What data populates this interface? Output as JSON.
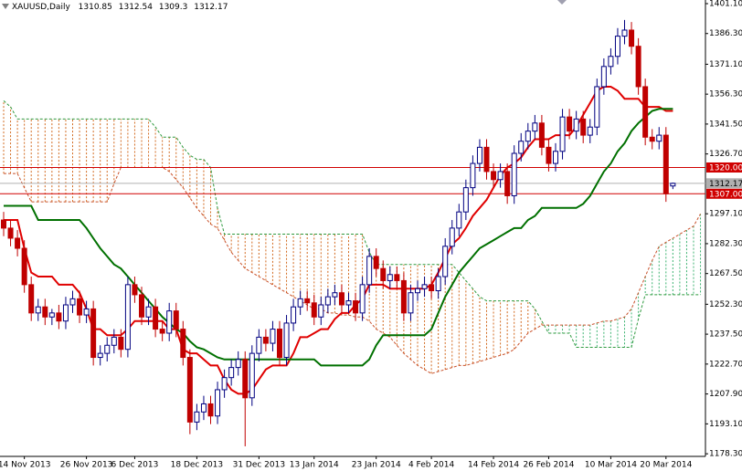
{
  "chart_data": {
    "type": "candlestick",
    "symbol": "XAUUSD,Daily",
    "categories": [
      null,
      null,
      null,
      "14 Nov 2013",
      null,
      null,
      null,
      null,
      null,
      null,
      null,
      null,
      "26 Nov 2013",
      null,
      null,
      null,
      null,
      null,
      null,
      "6 Dec 2013",
      null,
      null,
      null,
      null,
      null,
      null,
      null,
      null,
      "18 Dec 2013",
      null,
      null,
      null,
      null,
      null,
      null,
      null,
      null,
      "31 Dec 2013",
      null,
      null,
      null,
      null,
      null,
      null,
      null,
      "13 Jan 2014",
      null,
      null,
      null,
      null,
      null,
      null,
      null,
      null,
      "23 Jan 2014",
      null,
      null,
      null,
      null,
      null,
      null,
      null,
      "4 Feb 2014",
      null,
      null,
      null,
      null,
      null,
      null,
      null,
      null,
      "14 Feb 2014",
      null,
      null,
      null,
      null,
      null,
      null,
      null,
      "26 Feb 2014",
      null,
      null,
      null,
      null,
      null,
      null,
      null,
      null,
      "10 Mar 2014",
      null,
      null,
      null,
      null,
      null,
      null,
      null,
      "20 Mar 2014",
      null,
      null,
      null,
      null,
      null
    ],
    "open": [
      1294,
      1290,
      1285,
      1280,
      1262,
      1248,
      1251,
      1246,
      1248,
      1244,
      1252,
      1255,
      1247,
      1250,
      1226,
      1228,
      1232,
      1236,
      1230,
      1262,
      1257,
      1246,
      1251,
      1240,
      1238,
      1249,
      1240,
      1226,
      1194,
      1199,
      1203,
      1197,
      1210,
      1216,
      1221,
      1225,
      1206,
      1228,
      1236,
      1233,
      1240,
      1226,
      1243,
      1251,
      1255,
      1253,
      1246,
      1252,
      1256,
      1258,
      1252,
      1254,
      1248,
      1262,
      1276,
      1270,
      1264,
      1267,
      1264,
      1248,
      1258,
      1260,
      1262,
      1259,
      1266,
      1281,
      1290,
      1298,
      1310,
      1322,
      1330,
      1318,
      1314,
      1318,
      1306,
      1327,
      1333,
      1338,
      1342,
      1330,
      1322,
      1328,
      1345,
      1338,
      1344,
      1336,
      1340,
      1360,
      1370,
      1375,
      1385,
      1388,
      1380,
      1360,
      1335,
      1333,
      1336,
      1310.85,
      null,
      null,
      null,
      null
    ],
    "high": [
      1298,
      1294,
      1289,
      1284,
      1266,
      1255,
      1255,
      1250,
      1252,
      1256,
      1259,
      1259,
      1254,
      1254,
      1232,
      1236,
      1240,
      1240,
      1266,
      1266,
      1261,
      1255,
      1255,
      1244,
      1253,
      1253,
      1244,
      1230,
      1203,
      1207,
      1207,
      1214,
      1220,
      1225,
      1229,
      1229,
      1232,
      1240,
      1240,
      1244,
      1244,
      1247,
      1255,
      1259,
      1259,
      1257,
      1256,
      1260,
      1262,
      1262,
      1258,
      1258,
      1266,
      1280,
      1280,
      1274,
      1271,
      1271,
      1268,
      1262,
      1264,
      1266,
      1266,
      1270,
      1285,
      1294,
      1302,
      1314,
      1326,
      1334,
      1334,
      1322,
      1322,
      1322,
      1331,
      1337,
      1342,
      1346,
      1346,
      1334,
      1332,
      1349,
      1349,
      1348,
      1348,
      1344,
      1364,
      1374,
      1379,
      1389,
      1393,
      1392,
      1384,
      1364,
      1339,
      1340,
      1340,
      1312.54,
      null,
      null,
      null,
      null
    ],
    "low": [
      1286,
      1281,
      1276,
      1258,
      1244,
      1244,
      1242,
      1242,
      1240,
      1240,
      1248,
      1243,
      1243,
      1222,
      1222,
      1224,
      1228,
      1226,
      1226,
      1253,
      1242,
      1242,
      1236,
      1234,
      1234,
      1236,
      1222,
      1188,
      1190,
      1195,
      1193,
      1193,
      1206,
      1212,
      1217,
      1182,
      1202,
      1224,
      1229,
      1229,
      1222,
      1222,
      1239,
      1247,
      1249,
      1242,
      1242,
      1248,
      1252,
      1248,
      1248,
      1244,
      1244,
      1258,
      1266,
      1260,
      1260,
      1260,
      1244,
      1244,
      1254,
      1256,
      1255,
      1255,
      1262,
      1277,
      1286,
      1294,
      1306,
      1318,
      1314,
      1310,
      1310,
      1302,
      1302,
      1323,
      1329,
      1334,
      1326,
      1318,
      1318,
      1324,
      1334,
      1334,
      1332,
      1332,
      1336,
      1356,
      1366,
      1371,
      1381,
      1376,
      1356,
      1331,
      1329,
      1329,
      1303,
      1309.3,
      null,
      null,
      null,
      null
    ],
    "close": [
      1290,
      1285,
      1280,
      1262,
      1248,
      1251,
      1246,
      1248,
      1244,
      1252,
      1255,
      1247,
      1250,
      1226,
      1228,
      1232,
      1236,
      1230,
      1262,
      1257,
      1246,
      1251,
      1240,
      1238,
      1249,
      1240,
      1226,
      1194,
      1199,
      1203,
      1197,
      1210,
      1216,
      1221,
      1225,
      1206,
      1228,
      1236,
      1233,
      1240,
      1226,
      1243,
      1251,
      1255,
      1253,
      1246,
      1252,
      1256,
      1258,
      1252,
      1254,
      1248,
      1262,
      1276,
      1270,
      1264,
      1267,
      1264,
      1248,
      1258,
      1260,
      1262,
      1259,
      1266,
      1281,
      1290,
      1298,
      1310,
      1322,
      1330,
      1318,
      1314,
      1318,
      1306,
      1327,
      1333,
      1338,
      1342,
      1330,
      1322,
      1328,
      1345,
      1338,
      1344,
      1336,
      1340,
      1360,
      1370,
      1375,
      1385,
      1388,
      1380,
      1360,
      1335,
      1333,
      1336,
      1307,
      1312.17,
      null,
      null,
      null,
      null
    ],
    "bull_color": "#000080",
    "bear_color": "#c00000",
    "lines": [
      {
        "color": "#e00000",
        "values": [
          1294,
          1294,
          1294,
          1280,
          1268,
          1266,
          1266,
          1266,
          1262,
          1262,
          1262,
          1258,
          1250,
          1240,
          1240,
          1237,
          1237,
          1237,
          1240,
          1244,
          1244,
          1244,
          1244,
          1244,
          1240,
          1240,
          1230,
          1228,
          1228,
          1225,
          1222,
          1222,
          1215,
          1210,
          1208,
          1208,
          1210,
          1215,
          1220,
          1222,
          1222,
          1222,
          1228,
          1236,
          1236,
          1238,
          1240,
          1240,
          1245,
          1248,
          1248,
          1252,
          1255,
          1262,
          1262,
          1262,
          1260,
          1260,
          1260,
          1260,
          1260,
          1260,
          1262,
          1268,
          1275,
          1282,
          1285,
          1290,
          1296,
          1300,
          1304,
          1310,
          1316,
          1320,
          1322,
          1325,
          1330,
          1334,
          1334,
          1334,
          1336,
          1336,
          1336,
          1340,
          1346,
          1352,
          1358,
          1360,
          1360,
          1358,
          1354,
          1354,
          1354,
          1350,
          1350,
          1350,
          1348,
          1348,
          null,
          null,
          null,
          null
        ]
      },
      {
        "color": "#007000",
        "values": [
          1301,
          1301,
          1301,
          1301,
          1301,
          1294,
          1294,
          1294,
          1294,
          1294,
          1294,
          1294,
          1290,
          1285,
          1280,
          1276,
          1272,
          1270,
          1266,
          1262,
          1258,
          1254,
          1250,
          1246,
          1243,
          1240,
          1238,
          1234,
          1231,
          1230,
          1228,
          1226,
          1225,
          1225,
          1225,
          1225,
          1225,
          1225,
          1225,
          1225,
          1225,
          1225,
          1225,
          1225,
          1225,
          1225,
          1222,
          1222,
          1222,
          1222,
          1222,
          1222,
          1222,
          1225,
          1232,
          1237,
          1237,
          1237,
          1237,
          1237,
          1237,
          1237,
          1240,
          1248,
          1256,
          1262,
          1268,
          1272,
          1276,
          1280,
          1282,
          1284,
          1286,
          1288,
          1290,
          1290,
          1294,
          1296,
          1300,
          1300,
          1300,
          1300,
          1300,
          1300,
          1302,
          1306,
          1312,
          1318,
          1322,
          1328,
          1332,
          1338,
          1342,
          1345,
          1348,
          1349,
          1349,
          1349,
          null,
          null,
          null,
          null
        ]
      }
    ],
    "cloud": {
      "span_a_color": "#c8502a",
      "span_b_color": "#2e9a3e",
      "bear_color": "#d2691e",
      "bull_color": "#3cb371",
      "span_a": [
        1317,
        1317,
        1317,
        1310,
        1303,
        1303,
        1303,
        1303,
        1303,
        1303,
        1303,
        1303,
        1303,
        1303,
        1303,
        1303,
        1312,
        1320,
        1320,
        1320,
        1320,
        1320,
        1320,
        1320,
        1318,
        1314,
        1310,
        1305,
        1300,
        1296,
        1292,
        1290,
        1284,
        1278,
        1274,
        1270,
        1268,
        1266,
        1264,
        1262,
        1260,
        1258,
        1256,
        1254,
        1252,
        1250,
        1250,
        1248,
        1248,
        1247,
        1247,
        1246,
        1246,
        1244,
        1240,
        1238,
        1236,
        1232,
        1228,
        1225,
        1222,
        1220,
        1218,
        1219,
        1220,
        1221,
        1222,
        1222,
        1223,
        1224,
        1225,
        1226,
        1227,
        1228,
        1230,
        1234,
        1238,
        1240,
        1242,
        1242,
        1242,
        1242,
        1242,
        1242,
        1242,
        1242,
        1243,
        1244,
        1244,
        1245,
        1246,
        1250,
        1258,
        1266,
        1274,
        1281,
        1283,
        1285,
        1287,
        1289,
        1291,
        1297
      ],
      "span_b": [
        1353,
        1350,
        1344,
        1344,
        1344,
        1344,
        1344,
        1344,
        1344,
        1344,
        1344,
        1344,
        1344,
        1344,
        1344,
        1344,
        1344,
        1344,
        1344,
        1344,
        1344,
        1344,
        1340,
        1335,
        1335,
        1335,
        1330,
        1326,
        1324,
        1324,
        1320,
        1300,
        1287,
        1287,
        1287,
        1287,
        1287,
        1287,
        1287,
        1287,
        1287,
        1287,
        1287,
        1287,
        1287,
        1287,
        1287,
        1287,
        1287,
        1287,
        1287,
        1287,
        1287,
        1278,
        1272,
        1272,
        1272,
        1272,
        1272,
        1272,
        1272,
        1272,
        1272,
        1272,
        1272,
        1272,
        1268,
        1264,
        1260,
        1256,
        1254,
        1254,
        1254,
        1254,
        1254,
        1254,
        1254,
        1250,
        1244,
        1238,
        1238,
        1238,
        1238,
        1231,
        1231,
        1231,
        1231,
        1231,
        1231,
        1231,
        1231,
        1231,
        1245,
        1257,
        1257,
        1257,
        1257,
        1257,
        1257,
        1257,
        1257,
        1257
      ]
    },
    "levels": [
      {
        "value": 1320,
        "label": "1320.00",
        "color": "#d00000"
      },
      {
        "value": 1307,
        "label": "1307.00",
        "color": "#d00000"
      }
    ],
    "price": {
      "value": 1312.17,
      "color": "#b0b0b0"
    },
    "ylim": [
      1177.0,
      1402.9
    ],
    "yticks": [
      {
        "value": 1401.1,
        "label": "1401.10"
      },
      {
        "value": 1386.3,
        "label": "1386.30"
      },
      {
        "value": 1371.1,
        "label": "1371.10"
      },
      {
        "value": 1356.3,
        "label": "1356.30"
      },
      {
        "value": 1341.5,
        "label": "1341.50"
      },
      {
        "value": 1326.7,
        "label": "1326.70"
      },
      {
        "value": 1297.1,
        "label": "1297.10"
      },
      {
        "value": 1282.3,
        "label": "1282.30"
      },
      {
        "value": 1267.5,
        "label": "1267.50"
      },
      {
        "value": 1252.3,
        "label": "1252.30"
      },
      {
        "value": 1237.5,
        "label": "1237.50"
      },
      {
        "value": 1222.7,
        "label": "1222.70"
      },
      {
        "value": 1207.9,
        "label": "1207.90"
      },
      {
        "value": 1193.1,
        "label": "1193.10"
      },
      {
        "value": 1178.3,
        "label": "1178.30"
      }
    ]
  }
}
